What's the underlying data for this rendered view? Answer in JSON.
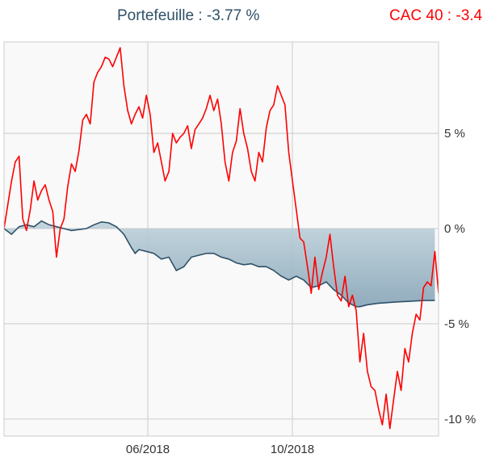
{
  "legend": {
    "portfolio": {
      "label": "Portefeuille : -3.77 %",
      "color": "#2f5168"
    },
    "cac40": {
      "label": "CAC 40 : -3.4",
      "color": "#ff0000"
    }
  },
  "chart_data": {
    "type": "line",
    "x_tick_labels": [
      "06/2018",
      "10/2018"
    ],
    "y_tick_labels": [
      "5 %",
      "0 %",
      "-5 %",
      "-10 %"
    ],
    "y_ticks": [
      5,
      0,
      -5,
      -10
    ],
    "ylim": [
      -10.9,
      9.8
    ],
    "grid": true,
    "series": [
      {
        "name": "Portefeuille : -3.77 %",
        "color": "#2f5168",
        "fill": "area",
        "points": [
          [
            0,
            0
          ],
          [
            2,
            -0.3
          ],
          [
            4,
            0.1
          ],
          [
            6,
            0.2
          ],
          [
            8,
            0.1
          ],
          [
            10,
            0.4
          ],
          [
            12,
            0.2
          ],
          [
            14,
            0.1
          ],
          [
            16,
            0.0
          ],
          [
            18,
            -0.1
          ],
          [
            20,
            -0.05
          ],
          [
            22,
            0.0
          ],
          [
            24,
            0.2
          ],
          [
            26,
            0.35
          ],
          [
            28,
            0.3
          ],
          [
            30,
            0.1
          ],
          [
            32,
            -0.3
          ],
          [
            34,
            -1.0
          ],
          [
            35,
            -1.3
          ],
          [
            36,
            -1.1
          ],
          [
            38,
            -1.2
          ],
          [
            40,
            -1.3
          ],
          [
            42,
            -1.6
          ],
          [
            44,
            -1.5
          ],
          [
            46,
            -2.2
          ],
          [
            48,
            -2.0
          ],
          [
            50,
            -1.5
          ],
          [
            52,
            -1.4
          ],
          [
            54,
            -1.3
          ],
          [
            56,
            -1.3
          ],
          [
            58,
            -1.5
          ],
          [
            60,
            -1.6
          ],
          [
            62,
            -1.8
          ],
          [
            64,
            -1.9
          ],
          [
            66,
            -1.85
          ],
          [
            68,
            -2.0
          ],
          [
            70,
            -2.0
          ],
          [
            72,
            -2.2
          ],
          [
            74,
            -2.5
          ],
          [
            76,
            -2.7
          ],
          [
            78,
            -2.5
          ],
          [
            80,
            -2.7
          ],
          [
            82,
            -3.1
          ],
          [
            84,
            -3.0
          ],
          [
            86,
            -2.8
          ],
          [
            88,
            -3.2
          ],
          [
            90,
            -3.5
          ],
          [
            92,
            -3.9
          ],
          [
            94,
            -4.1
          ],
          [
            95,
            -4.1
          ],
          [
            97,
            -4.0
          ],
          [
            100,
            -3.92
          ],
          [
            105,
            -3.85
          ],
          [
            110,
            -3.8
          ],
          [
            112,
            -3.78
          ],
          [
            115,
            -3.77
          ]
        ]
      },
      {
        "name": "CAC 40 : -3.4",
        "color": "#ff0000",
        "fill": "none",
        "points": [
          [
            0,
            0
          ],
          [
            2,
            2.5
          ],
          [
            3,
            3.5
          ],
          [
            4,
            3.8
          ],
          [
            5,
            0.5
          ],
          [
            6,
            -0.1
          ],
          [
            7,
            1.0
          ],
          [
            8,
            2.5
          ],
          [
            9,
            1.5
          ],
          [
            10,
            2.0
          ],
          [
            11,
            2.3
          ],
          [
            12,
            1.5
          ],
          [
            13,
            0.9
          ],
          [
            14,
            -1.5
          ],
          [
            15,
            0.0
          ],
          [
            16,
            0.5
          ],
          [
            17,
            2.2
          ],
          [
            18,
            3.4
          ],
          [
            19,
            3.0
          ],
          [
            20,
            4.1
          ],
          [
            21,
            5.7
          ],
          [
            22,
            6.0
          ],
          [
            23,
            5.5
          ],
          [
            24,
            7.7
          ],
          [
            25,
            8.2
          ],
          [
            26,
            8.5
          ],
          [
            27,
            9.0
          ],
          [
            28,
            8.9
          ],
          [
            29,
            8.5
          ],
          [
            30,
            9.0
          ],
          [
            31,
            9.5
          ],
          [
            32,
            7.5
          ],
          [
            33,
            6.2
          ],
          [
            34,
            5.5
          ],
          [
            35,
            6.0
          ],
          [
            36,
            6.4
          ],
          [
            37,
            5.8
          ],
          [
            38,
            7.0
          ],
          [
            39,
            6.0
          ],
          [
            40,
            4.0
          ],
          [
            41,
            4.5
          ],
          [
            42,
            3.5
          ],
          [
            43,
            2.5
          ],
          [
            44,
            3.0
          ],
          [
            45,
            5.0
          ],
          [
            46,
            4.5
          ],
          [
            47,
            4.8
          ],
          [
            48,
            5.0
          ],
          [
            49,
            5.4
          ],
          [
            50,
            4.2
          ],
          [
            51,
            5.2
          ],
          [
            52,
            5.5
          ],
          [
            53,
            5.8
          ],
          [
            54,
            6.3
          ],
          [
            55,
            7.0
          ],
          [
            56,
            6.2
          ],
          [
            57,
            6.8
          ],
          [
            58,
            5.5
          ],
          [
            59,
            3.5
          ],
          [
            60,
            2.5
          ],
          [
            61,
            4.0
          ],
          [
            62,
            4.6
          ],
          [
            63,
            6.3
          ],
          [
            64,
            5.0
          ],
          [
            65,
            4.2
          ],
          [
            66,
            3.0
          ],
          [
            67,
            2.5
          ],
          [
            68,
            4.0
          ],
          [
            69,
            3.5
          ],
          [
            70,
            5.3
          ],
          [
            71,
            6.2
          ],
          [
            72,
            6.5
          ],
          [
            73,
            7.5
          ],
          [
            74,
            7.0
          ],
          [
            75,
            6.5
          ],
          [
            76,
            4.0
          ],
          [
            77,
            2.5
          ],
          [
            78,
            1.0
          ],
          [
            79,
            -0.5
          ],
          [
            80,
            -0.7
          ],
          [
            81,
            -2.0
          ],
          [
            82,
            -3.4
          ],
          [
            83,
            -1.5
          ],
          [
            84,
            -3.2
          ],
          [
            85,
            -2.3
          ],
          [
            86,
            -1.5
          ],
          [
            87,
            -0.3
          ],
          [
            88,
            -2.0
          ],
          [
            89,
            -3.5
          ],
          [
            90,
            -3.8
          ],
          [
            91,
            -2.5
          ],
          [
            92,
            -4.1
          ],
          [
            93,
            -3.5
          ],
          [
            94,
            -4.3
          ],
          [
            95,
            -7.0
          ],
          [
            96,
            -5.5
          ],
          [
            97,
            -7.5
          ],
          [
            98,
            -8.3
          ],
          [
            99,
            -8.5
          ],
          [
            100,
            -9.5
          ],
          [
            101,
            -10.3
          ],
          [
            102,
            -8.7
          ],
          [
            103,
            -10.5
          ],
          [
            104,
            -9.0
          ],
          [
            105,
            -7.5
          ],
          [
            106,
            -8.5
          ],
          [
            107,
            -6.3
          ],
          [
            108,
            -7.0
          ],
          [
            109,
            -5.5
          ],
          [
            110,
            -4.5
          ],
          [
            111,
            -4.8
          ],
          [
            112,
            -3.1
          ],
          [
            113,
            -2.8
          ],
          [
            114,
            -3.0
          ],
          [
            115,
            -1.2
          ],
          [
            116,
            -3.4
          ]
        ]
      }
    ]
  }
}
